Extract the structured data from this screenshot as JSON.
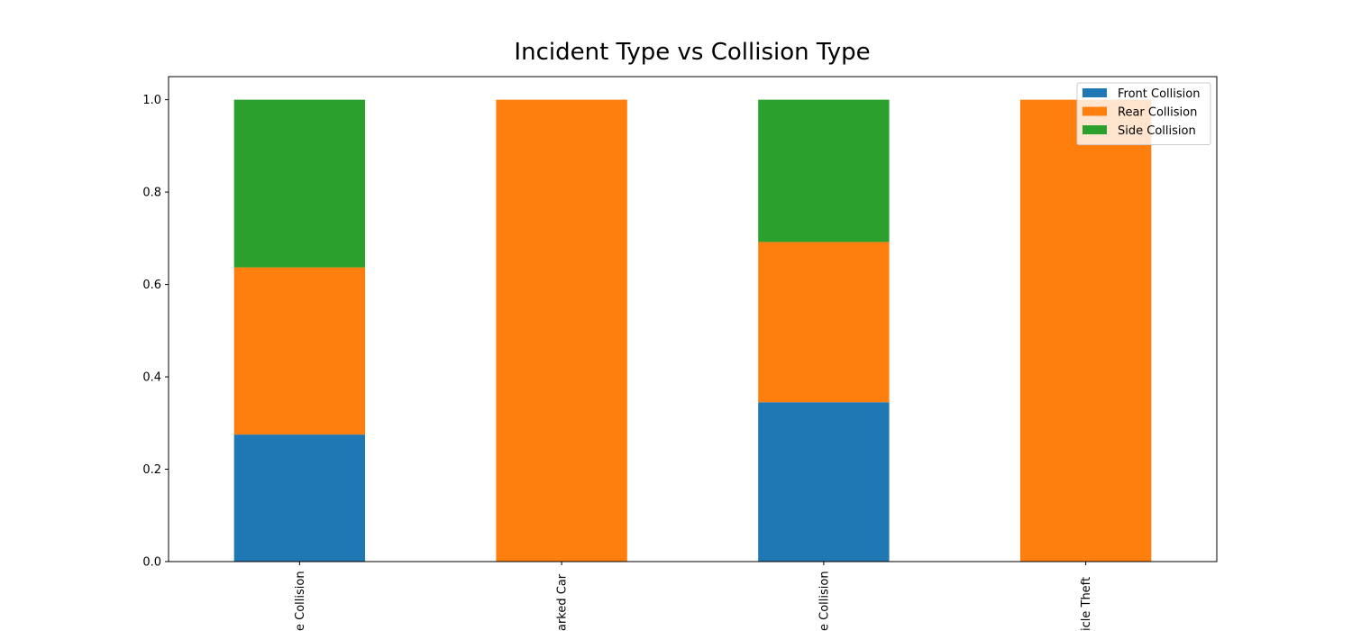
{
  "chart_data": {
    "type": "stacked-bar",
    "title": "Incident Type vs Collision Type",
    "categories": [
      "e Collision",
      "arked Car",
      "e Collision",
      "icle Theft"
    ],
    "series": [
      {
        "name": "Front Collision",
        "color": "#1f77b4",
        "values": [
          0.275,
          0,
          0.345,
          0
        ]
      },
      {
        "name": "Rear Collision",
        "color": "#ff7f0e",
        "values": [
          0.362,
          1,
          0.347,
          1
        ]
      },
      {
        "name": "Side Collision",
        "color": "#2ca02c",
        "values": [
          0.363,
          0,
          0.308,
          0
        ]
      }
    ],
    "ylim": [
      0,
      1.05
    ],
    "yticks": [
      {
        "value": 0,
        "label": "0.0"
      },
      {
        "value": 0.2,
        "label": "0.2"
      },
      {
        "value": 0.4,
        "label": "0.4"
      },
      {
        "value": 0.6,
        "label": "0.6"
      },
      {
        "value": 0.8,
        "label": "0.8"
      },
      {
        "value": 1,
        "label": "1.0"
      }
    ],
    "legend": "upper right",
    "grid": false
  }
}
